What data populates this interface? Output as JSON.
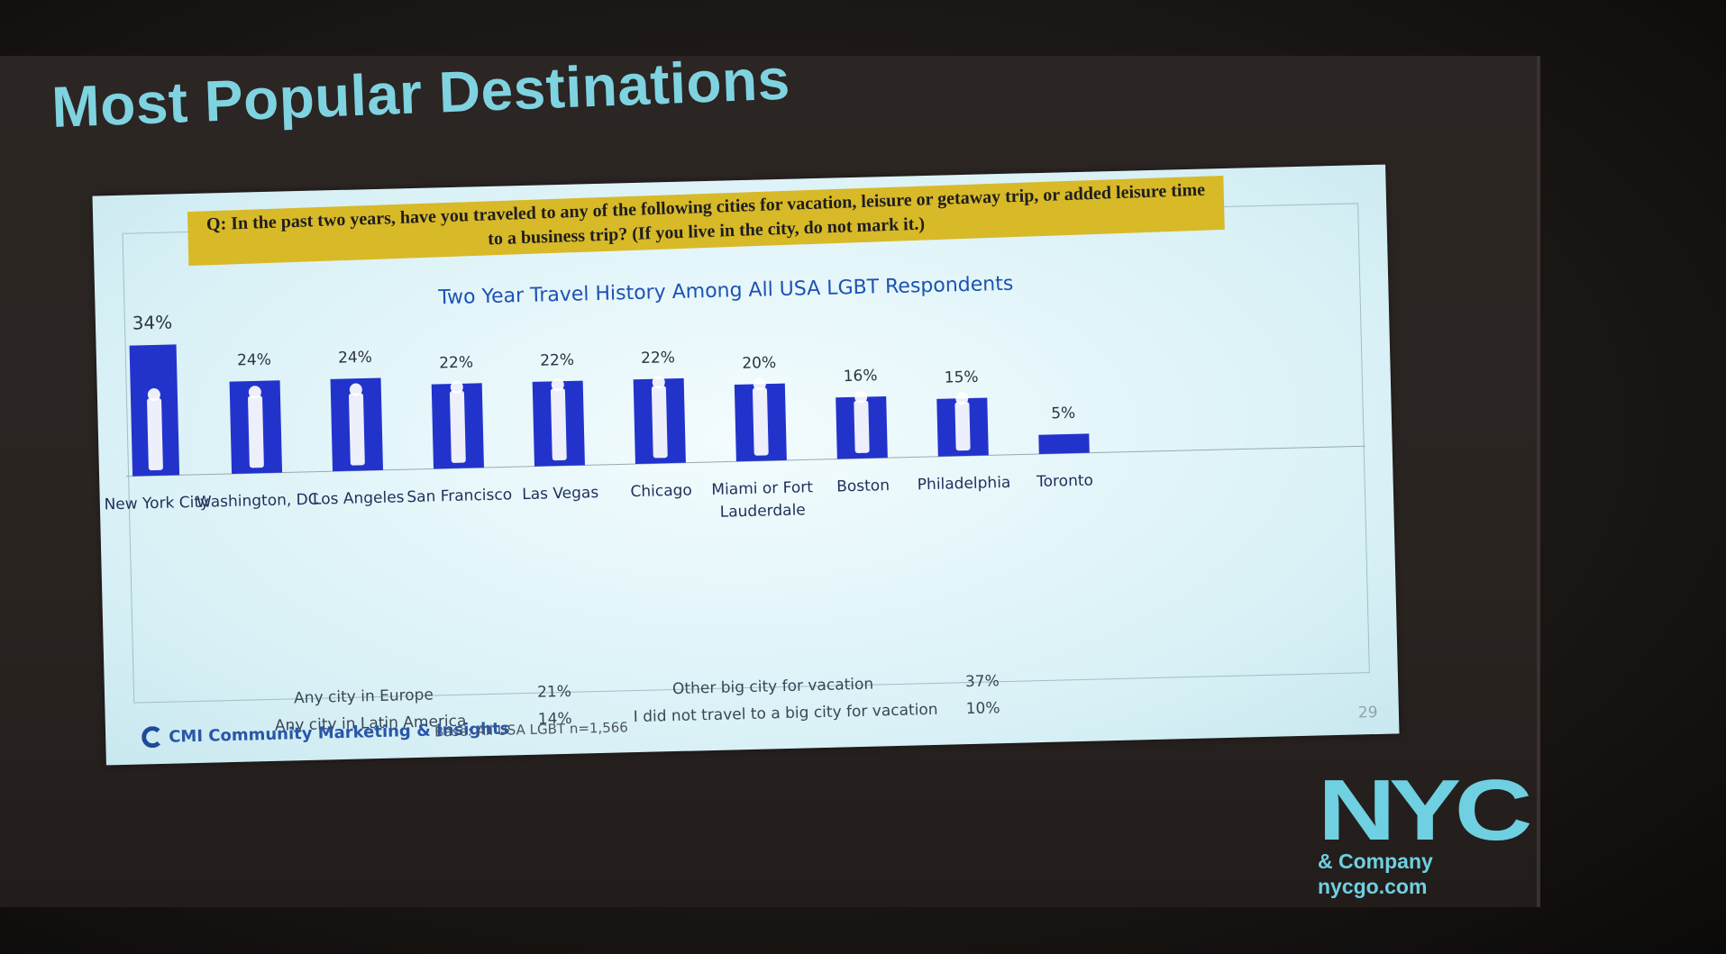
{
  "slide": {
    "title": "Most Popular Destinations",
    "question": "Q: In the past two years, have you traveled to any of the following cities for vacation, leisure or getaway trip, or added leisure time to a business trip? (If you live in the city, do not mark it.)",
    "page_number": "29"
  },
  "footer": {
    "brand": "CMI Community Marketing & Insights",
    "base": "Base: All USA LGBT n=1,566"
  },
  "logo": {
    "mark": "NYC",
    "line1": "& Company",
    "line2": "nycgo.com"
  },
  "colors": {
    "bar": "#2233cc",
    "title": "#7fd3e0",
    "question_bg": "#d8b928",
    "chart_title": "#1d52b4"
  },
  "chart_data": {
    "type": "bar",
    "title": "Two Year Travel History Among All USA LGBT Respondents",
    "categories": [
      "New York City",
      "Washington, DC",
      "Los Angeles",
      "San Francisco",
      "Las Vegas",
      "Chicago",
      "Miami or Fort Lauderdale",
      "Boston",
      "Philadelphia",
      "Toronto"
    ],
    "values": [
      34,
      24,
      24,
      22,
      22,
      22,
      20,
      16,
      15,
      5
    ],
    "value_labels": [
      "34%",
      "24%",
      "24%",
      "22%",
      "22%",
      "22%",
      "20%",
      "16%",
      "15%",
      "5%"
    ],
    "icons": [
      "statue-of-liberty-icon",
      "capitol-building-icon",
      "oscar-statue-icon",
      "golden-gate-bridge-icon",
      "las-vegas-sign-icon",
      "willis-tower-icon",
      "palm-tree-icon",
      "ship-icon",
      "liberty-bell-icon",
      ""
    ],
    "ylim": [
      0,
      34
    ],
    "grid": false,
    "legend": "none",
    "additional_results": [
      {
        "label": "Any city in Europe",
        "value": "21%"
      },
      {
        "label": "Any city in Latin America",
        "value": "14%"
      },
      {
        "label": "Other big city for vacation",
        "value": "37%"
      },
      {
        "label": "I did not travel to a big city for vacation",
        "value": "10%"
      }
    ]
  }
}
